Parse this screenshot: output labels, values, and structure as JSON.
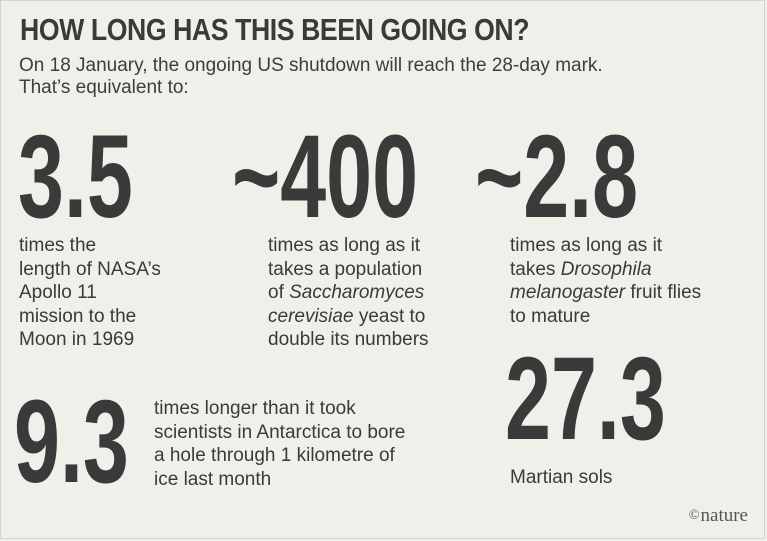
{
  "title": "HOW LONG HAS THIS BEEN GOING ON?",
  "subtitle_line1": "On 18 January, the ongoing US shutdown will reach the 28-day mark.",
  "subtitle_line2": "That’s equivalent to:",
  "stats": [
    {
      "value": "3.5",
      "lines": [
        "times the",
        "length of NASA’s",
        "Apollo 11",
        "mission to the",
        "Moon in 1969"
      ]
    },
    {
      "value": "~400",
      "lines": [
        "times as long as it",
        "takes a population"
      ],
      "line3_prefix": "of ",
      "line3_italic": "Saccharomyces",
      "line4_italic": "cerevisiae",
      "line4_suffix": " yeast to",
      "line5": "double its numbers"
    },
    {
      "value": "~2.8",
      "line1": "times as long as it",
      "line2_prefix": "takes ",
      "line2_italic": "Drosophila",
      "line3_italic": "melanogaster",
      "line3_suffix": " fruit flies",
      "line4": "to mature"
    },
    {
      "value": "9.3",
      "lines": [
        "times longer than it took",
        "scientists in Antarctica to bore",
        "a hole through 1 kilometre of",
        "ice last month"
      ]
    },
    {
      "value": "27.3",
      "lines": [
        "Martian sols"
      ]
    }
  ],
  "credit": {
    "symbol": "©",
    "text": "nature"
  },
  "colors": {
    "background": "#f1efe9",
    "text": "#3a3a3a"
  }
}
